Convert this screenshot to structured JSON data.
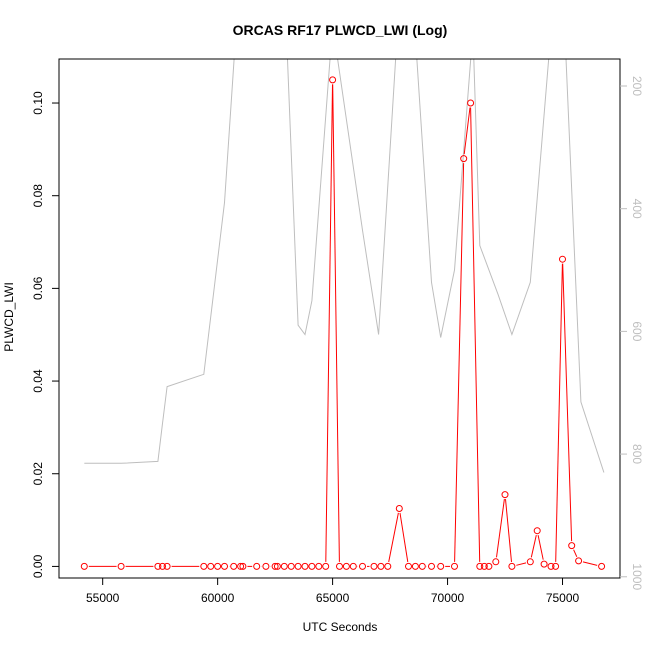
{
  "chart_data": {
    "type": "line",
    "title": "ORCAS RF17 PLWCD_LWI (Log)",
    "xlabel": "UTC Seconds",
    "ylabel": "PLWCD_LWI",
    "xlim": [
      53100,
      77500
    ],
    "ylim": [
      -0.0025,
      0.1095
    ],
    "x_ticks": [
      "55000",
      "60000",
      "65000",
      "70000",
      "75000"
    ],
    "y_ticks": [
      "0.00",
      "0.02",
      "0.04",
      "0.06",
      "0.08",
      "0.10"
    ],
    "right_axis": {
      "ticks": [
        "200",
        "400",
        "600",
        "800",
        "1000"
      ],
      "range_top": 156,
      "range_bottom": 1002,
      "color": "#bebebe"
    },
    "colors": {
      "primary": "#ff0000",
      "secondary": "#bebebe"
    },
    "series": [
      {
        "color": "#ff0000",
        "marker": "open-circle",
        "x": [
          54200,
          55800,
          57400,
          57600,
          57800,
          59400,
          59700,
          60000,
          60300,
          60700,
          61000,
          61100,
          61700,
          62100,
          62500,
          62600,
          62900,
          63200,
          63500,
          63800,
          64100,
          64400,
          64700,
          65000,
          65300,
          65600,
          65900,
          66300,
          66800,
          67100,
          67400,
          67900,
          68300,
          68600,
          68900,
          69300,
          69700,
          70300,
          70700,
          71000,
          71400,
          71600,
          71800,
          72100,
          72500,
          72800,
          73600,
          73900,
          74200,
          74500,
          74700,
          75000,
          75400,
          75700,
          76700
        ],
        "y": [
          0.0,
          0.0,
          0.0,
          0.0,
          0.0,
          0.0,
          0.0,
          0.0,
          0.0,
          0.0,
          0.0,
          0.0,
          0.0,
          0.0,
          0.0,
          0.0,
          0.0,
          0.0,
          0.0,
          0.0,
          0.0,
          0.0,
          0.0,
          0.105,
          0.0,
          0.0,
          0.0,
          0.0,
          0.0,
          0.0,
          0.0,
          0.0125,
          0.0,
          0.0,
          0.0,
          0.0,
          0.0,
          0.0,
          0.088,
          0.1,
          0.0,
          0.0,
          0.0,
          0.001,
          0.0155,
          0.0,
          0.001,
          0.0077,
          0.0005,
          0.0,
          0.0,
          0.0663,
          0.0045,
          0.0012,
          0.0
        ]
      },
      {
        "color": "#bebebe",
        "axis": "right",
        "x": [
          54200,
          55800,
          57400,
          57600,
          57800,
          59400,
          60300,
          60800,
          61700,
          62000,
          62200,
          63000,
          63500,
          63800,
          64100,
          65000,
          66300,
          67000,
          67800,
          68600,
          69300,
          69700,
          70300,
          71100,
          71400,
          72200,
          72800,
          73600,
          74500,
          75100,
          75800,
          76800
        ],
        "y": [
          815,
          815,
          812,
          750,
          690,
          670,
          390,
          110,
          110,
          135,
          130,
          120,
          590,
          605,
          550,
          100,
          435,
          605,
          120,
          120,
          520,
          610,
          500,
          110,
          460,
          540,
          605,
          520,
          110,
          110,
          715,
          830
        ]
      }
    ]
  }
}
